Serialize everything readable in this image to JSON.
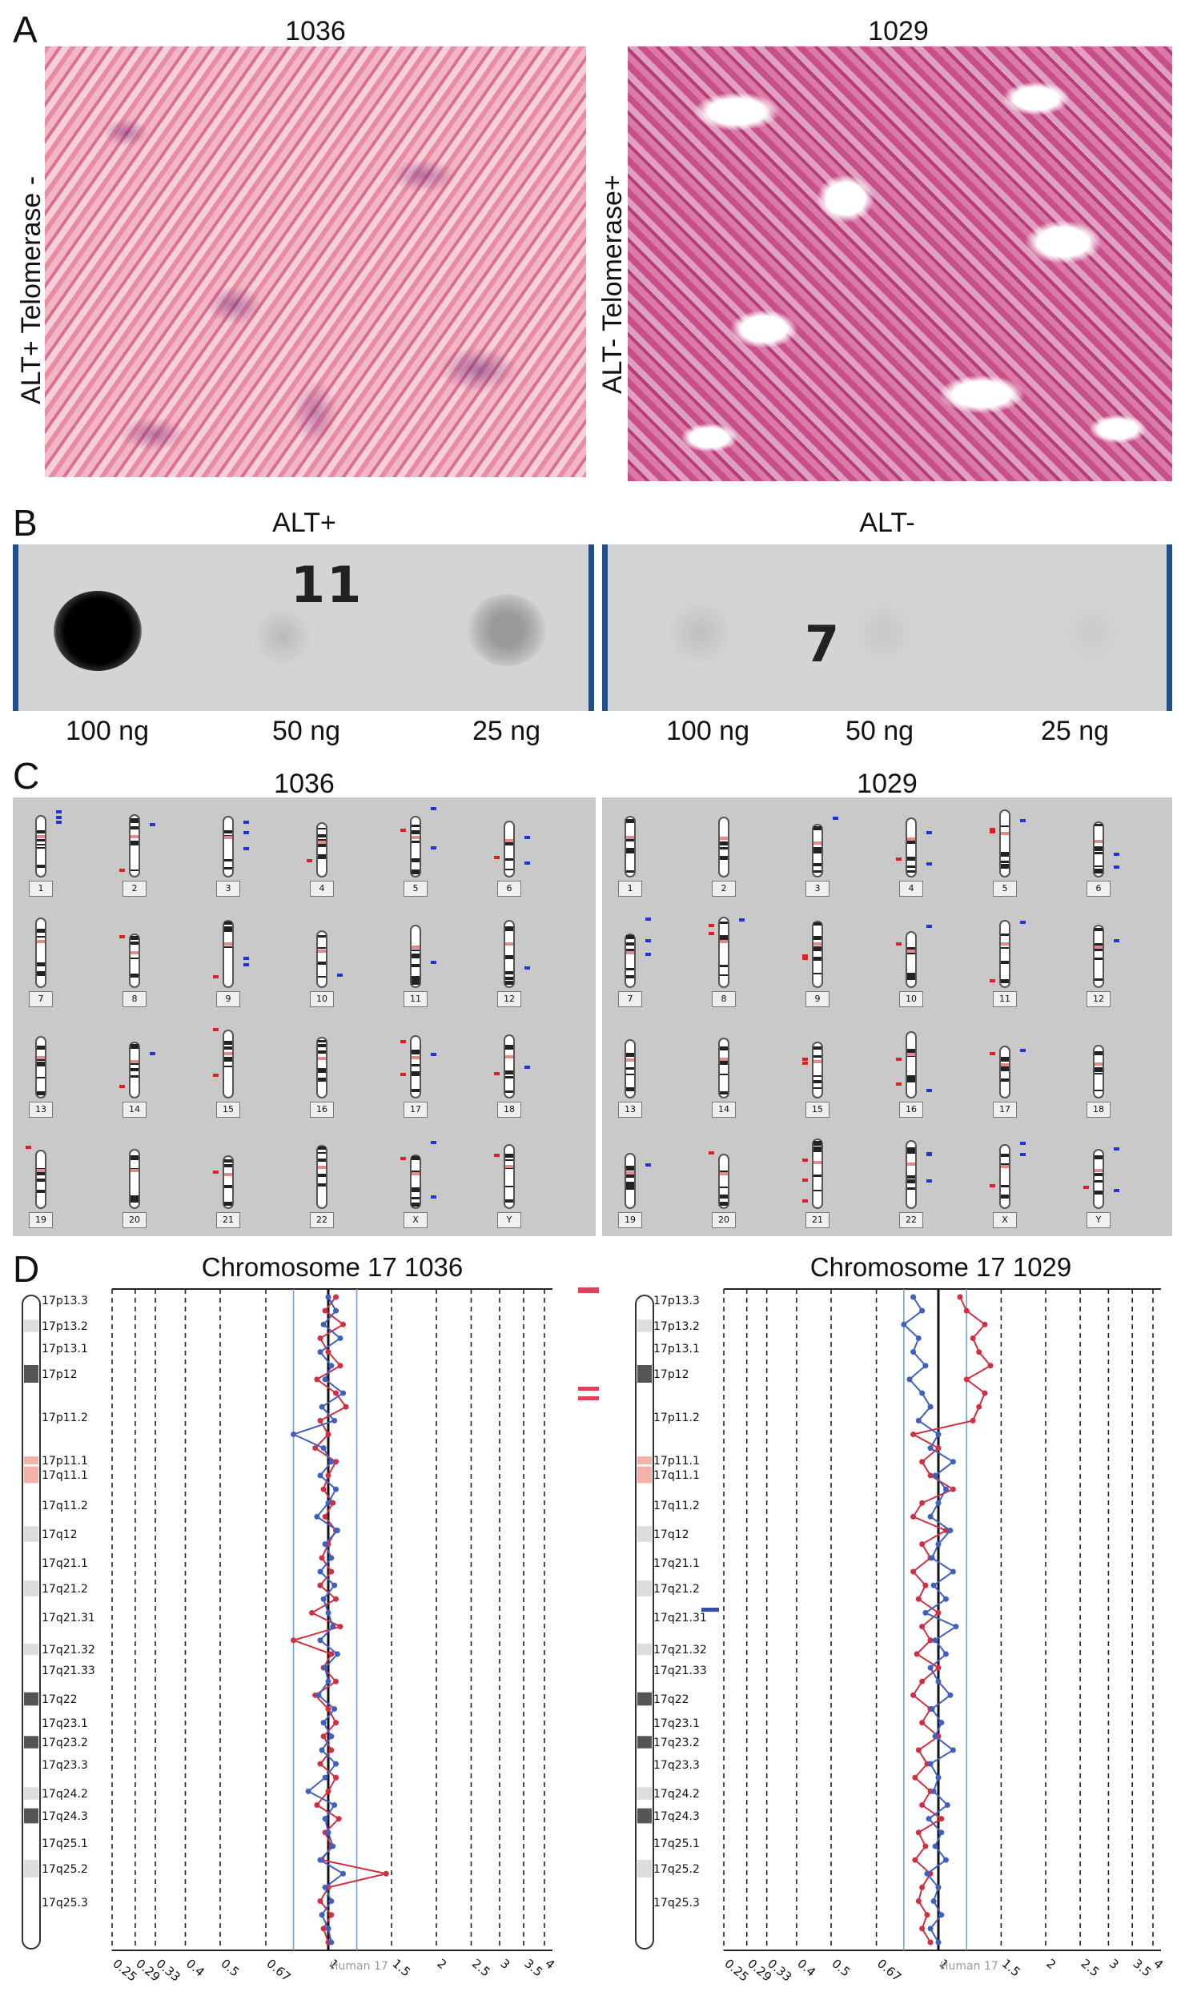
{
  "panels": {
    "A": {
      "letter": "A",
      "left_title": "1036",
      "right_title": "1029",
      "left_side": "ALT+  Telomerase -",
      "right_side": "ALT- Telomerase+"
    },
    "B": {
      "letter": "B",
      "left_title": "ALT+",
      "right_title": "ALT-",
      "left_number": "11",
      "right_number": "7",
      "amounts": [
        "100 ng",
        "50 ng",
        "25 ng"
      ]
    },
    "C": {
      "letter": "C",
      "left_title": "1036",
      "right_title": "1029",
      "chromosomes": [
        "1",
        "2",
        "3",
        "4",
        "5",
        "6",
        "7",
        "8",
        "9",
        "10",
        "11",
        "12",
        "13",
        "14",
        "15",
        "16",
        "17",
        "18",
        "19",
        "20",
        "21",
        "22",
        "X",
        "Y"
      ]
    },
    "D": {
      "letter": "D",
      "left_title": "Chromosome 17 1036",
      "right_title": "Chromosome 17 1029",
      "bands": [
        "17p13.3",
        "17p13.2",
        "17p13.1",
        "17p12",
        "17p11.2",
        "17p11.1",
        "17q11.1",
        "17q11.2",
        "17q12",
        "17q21.1",
        "17q21.2",
        "17q21.31",
        "17q21.32",
        "17q21.33",
        "17q22",
        "17q23.1",
        "17q23.2",
        "17q23.3",
        "17q24.2",
        "17q24.3",
        "17q25.1",
        "17q25.2",
        "17q25.3"
      ],
      "ticks": [
        "0.25",
        "0.29",
        "0.33",
        "0.4",
        "0.5",
        "0.67",
        "1",
        "1.5",
        "2",
        "2.5",
        "3",
        "3.5",
        "4"
      ],
      "axis_label": "Human 17"
    }
  },
  "chart_data": [
    {
      "type": "line",
      "title": "Chromosome 17 1036",
      "xlabel": "Human 17",
      "scale": "log2",
      "ticks": [
        0.25,
        0.29,
        0.33,
        0.4,
        0.5,
        0.67,
        1,
        1.5,
        2,
        2.5,
        3,
        3.5,
        4
      ],
      "series": [
        {
          "color": "#d03040",
          "ratios": [
            1.05,
            0.98,
            1.1,
            0.95,
            1.0,
            1.08,
            0.93,
            1.05,
            1.12,
            0.95,
            1.0,
            0.92,
            1.05,
            1.0,
            0.97,
            1.03,
            0.98,
            1.05,
            1.0,
            0.96,
            1.02,
            0.95,
            1.05,
            0.9,
            1.08,
            0.8,
            1.02,
            0.97,
            1.05,
            0.92,
            1.0,
            1.05,
            0.97,
            1.02,
            0.95,
            1.05,
            1.0,
            0.93,
            1.07,
            0.98,
            1.02,
            0.96,
            1.45,
            1.0,
            0.95,
            1.02,
            0.97,
            1.0
          ]
        },
        {
          "color": "#4060c0",
          "ratios": [
            1.0,
            1.05,
            0.97,
            1.08,
            0.95,
            1.02,
            0.98,
            1.1,
            0.96,
            1.04,
            0.8,
            0.97,
            1.02,
            0.95,
            1.05,
            1.0,
            0.93,
            1.06,
            0.98,
            1.02,
            0.95,
            1.04,
            0.97,
            1.0,
            1.03,
            0.95,
            1.06,
            0.98,
            1.0,
            0.94,
            1.04,
            0.97,
            1.02,
            0.96,
            1.05,
            0.98,
            0.88,
            1.04,
            0.98,
            1.0,
            1.03,
            0.95,
            1.1,
            0.98,
            1.02,
            0.96,
            1.0,
            1.02
          ]
        }
      ]
    },
    {
      "type": "line",
      "title": "Chromosome 17 1029",
      "xlabel": "Human 17",
      "scale": "log2",
      "ticks": [
        0.25,
        0.29,
        0.33,
        0.4,
        0.5,
        0.67,
        1,
        1.5,
        2,
        2.5,
        3,
        3.5,
        4
      ],
      "series": [
        {
          "color": "#d03040",
          "ratios": [
            1.15,
            1.2,
            1.35,
            1.25,
            1.3,
            1.4,
            1.2,
            1.35,
            1.3,
            1.25,
            0.85,
            1.0,
            0.9,
            0.95,
            1.1,
            0.9,
            0.85,
            1.05,
            0.9,
            0.95,
            0.85,
            0.92,
            0.88,
            1.0,
            0.9,
            0.95,
            0.87,
            1.0,
            0.9,
            0.85,
            0.95,
            0.9,
            1.0,
            0.88,
            0.93,
            0.86,
            0.95,
            0.9,
            1.02,
            0.88,
            0.92,
            0.86,
            0.95,
            0.9,
            0.88,
            0.93,
            0.9,
            0.95
          ]
        },
        {
          "color": "#4060c0",
          "ratios": [
            0.85,
            0.9,
            0.8,
            0.88,
            0.85,
            0.92,
            0.83,
            0.9,
            0.95,
            0.88,
            1.0,
            0.95,
            1.1,
            0.98,
            1.05,
            1.0,
            0.95,
            1.08,
            1.0,
            0.96,
            1.1,
            0.97,
            1.05,
            0.92,
            1.12,
            0.98,
            1.05,
            0.95,
            1.0,
            1.08,
            0.96,
            1.02,
            0.98,
            1.1,
            0.95,
            1.0,
            0.97,
            1.06,
            0.94,
            1.02,
            0.98,
            1.05,
            0.93,
            1.0,
            0.97,
            1.02,
            0.95,
            1.0
          ]
        }
      ]
    }
  ]
}
